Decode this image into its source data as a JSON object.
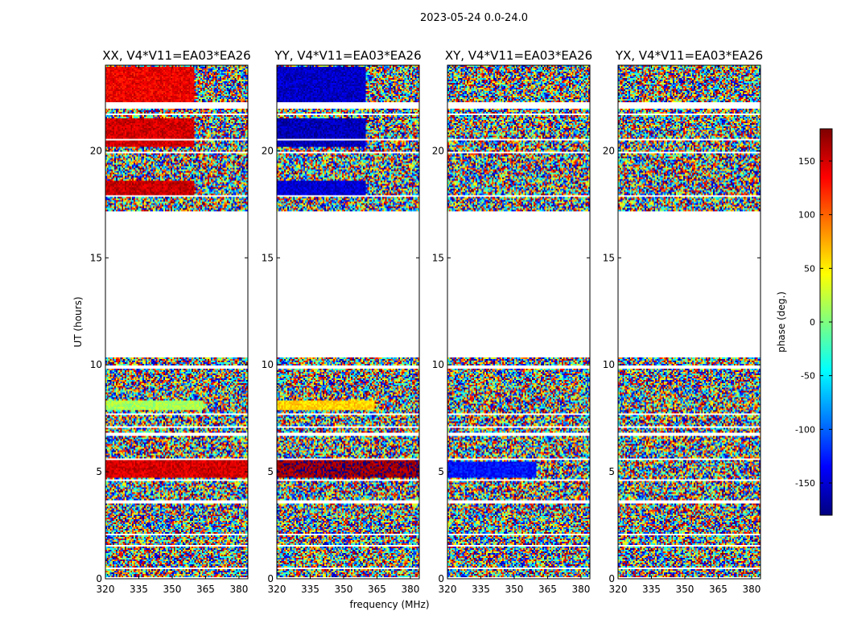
{
  "chart_data": {
    "type": "heatmap",
    "suptitle": "2023-05-24 0.0-24.0",
    "xlabel": "frequency (MHz)",
    "ylabel": "UT (hours)",
    "xlim": [
      320,
      384
    ],
    "ylim": [
      0,
      24
    ],
    "xticks": [
      320,
      335,
      350,
      365,
      380
    ],
    "yticks": [
      0,
      5,
      10,
      15,
      20
    ],
    "panels": [
      {
        "title": "XX, V4*V11=EA03*EA26",
        "pol": "XX",
        "coherent_blocks": [
          {
            "t0": 22.3,
            "t1": 23.9,
            "f0": 320,
            "f1": 360,
            "phase": 140
          },
          {
            "t0": 20.2,
            "t1": 21.5,
            "f0": 320,
            "f1": 360,
            "phase": 150
          },
          {
            "t0": 17.9,
            "t1": 18.6,
            "f0": 320,
            "f1": 360,
            "phase": 155
          },
          {
            "t0": 7.9,
            "t1": 8.3,
            "f0": 320,
            "f1": 364,
            "phase": 15
          },
          {
            "t0": 4.7,
            "t1": 5.6,
            "f0": 320,
            "f1": 384,
            "phase": 150
          }
        ]
      },
      {
        "title": "YY, V4*V11=EA03*EA26",
        "pol": "YY",
        "coherent_blocks": [
          {
            "t0": 22.3,
            "t1": 23.9,
            "f0": 320,
            "f1": 360,
            "phase": -155
          },
          {
            "t0": 20.2,
            "t1": 21.5,
            "f0": 320,
            "f1": 360,
            "phase": -160
          },
          {
            "t0": 17.9,
            "t1": 18.6,
            "f0": 320,
            "f1": 360,
            "phase": -150
          },
          {
            "t0": 7.9,
            "t1": 8.3,
            "f0": 320,
            "f1": 364,
            "phase": 60
          },
          {
            "t0": 4.7,
            "t1": 5.6,
            "f0": 320,
            "f1": 384,
            "phase": 170
          }
        ]
      },
      {
        "title": "XY, V4*V11=EA03*EA26",
        "pol": "XY",
        "coherent_blocks": [
          {
            "t0": 4.7,
            "t1": 5.5,
            "f0": 320,
            "f1": 360,
            "phase": -130
          }
        ]
      },
      {
        "title": "YX, V4*V11=EA03*EA26",
        "pol": "YX",
        "coherent_blocks": []
      }
    ],
    "flagged_ut_ranges": [
      [
        0.0,
        0.05
      ],
      [
        0.45,
        0.55
      ],
      [
        1.5,
        1.6
      ],
      [
        2.0,
        2.1
      ],
      [
        3.5,
        3.65
      ],
      [
        4.55,
        4.65
      ],
      [
        5.55,
        5.65
      ],
      [
        6.65,
        6.8
      ],
      [
        7.05,
        7.15
      ],
      [
        7.65,
        7.75
      ],
      [
        9.8,
        10.0
      ],
      [
        10.35,
        17.15
      ],
      [
        17.85,
        17.95
      ],
      [
        19.85,
        19.95
      ],
      [
        20.45,
        20.55
      ],
      [
        21.65,
        21.75
      ],
      [
        22.0,
        22.3
      ]
    ],
    "colorbar": {
      "label": "phase (deg.)",
      "range": [
        -180,
        180
      ],
      "ticks": [
        150,
        100,
        50,
        0,
        -50,
        -100,
        -150
      ],
      "colormap": "jet"
    },
    "colors": {
      "jet": [
        "#00007f",
        "#0000ff",
        "#007fff",
        "#00ffff",
        "#7fff7f",
        "#ffff00",
        "#ff7f00",
        "#ff0000",
        "#7f0000"
      ],
      "axes": "#000000",
      "background": "#ffffff"
    }
  }
}
